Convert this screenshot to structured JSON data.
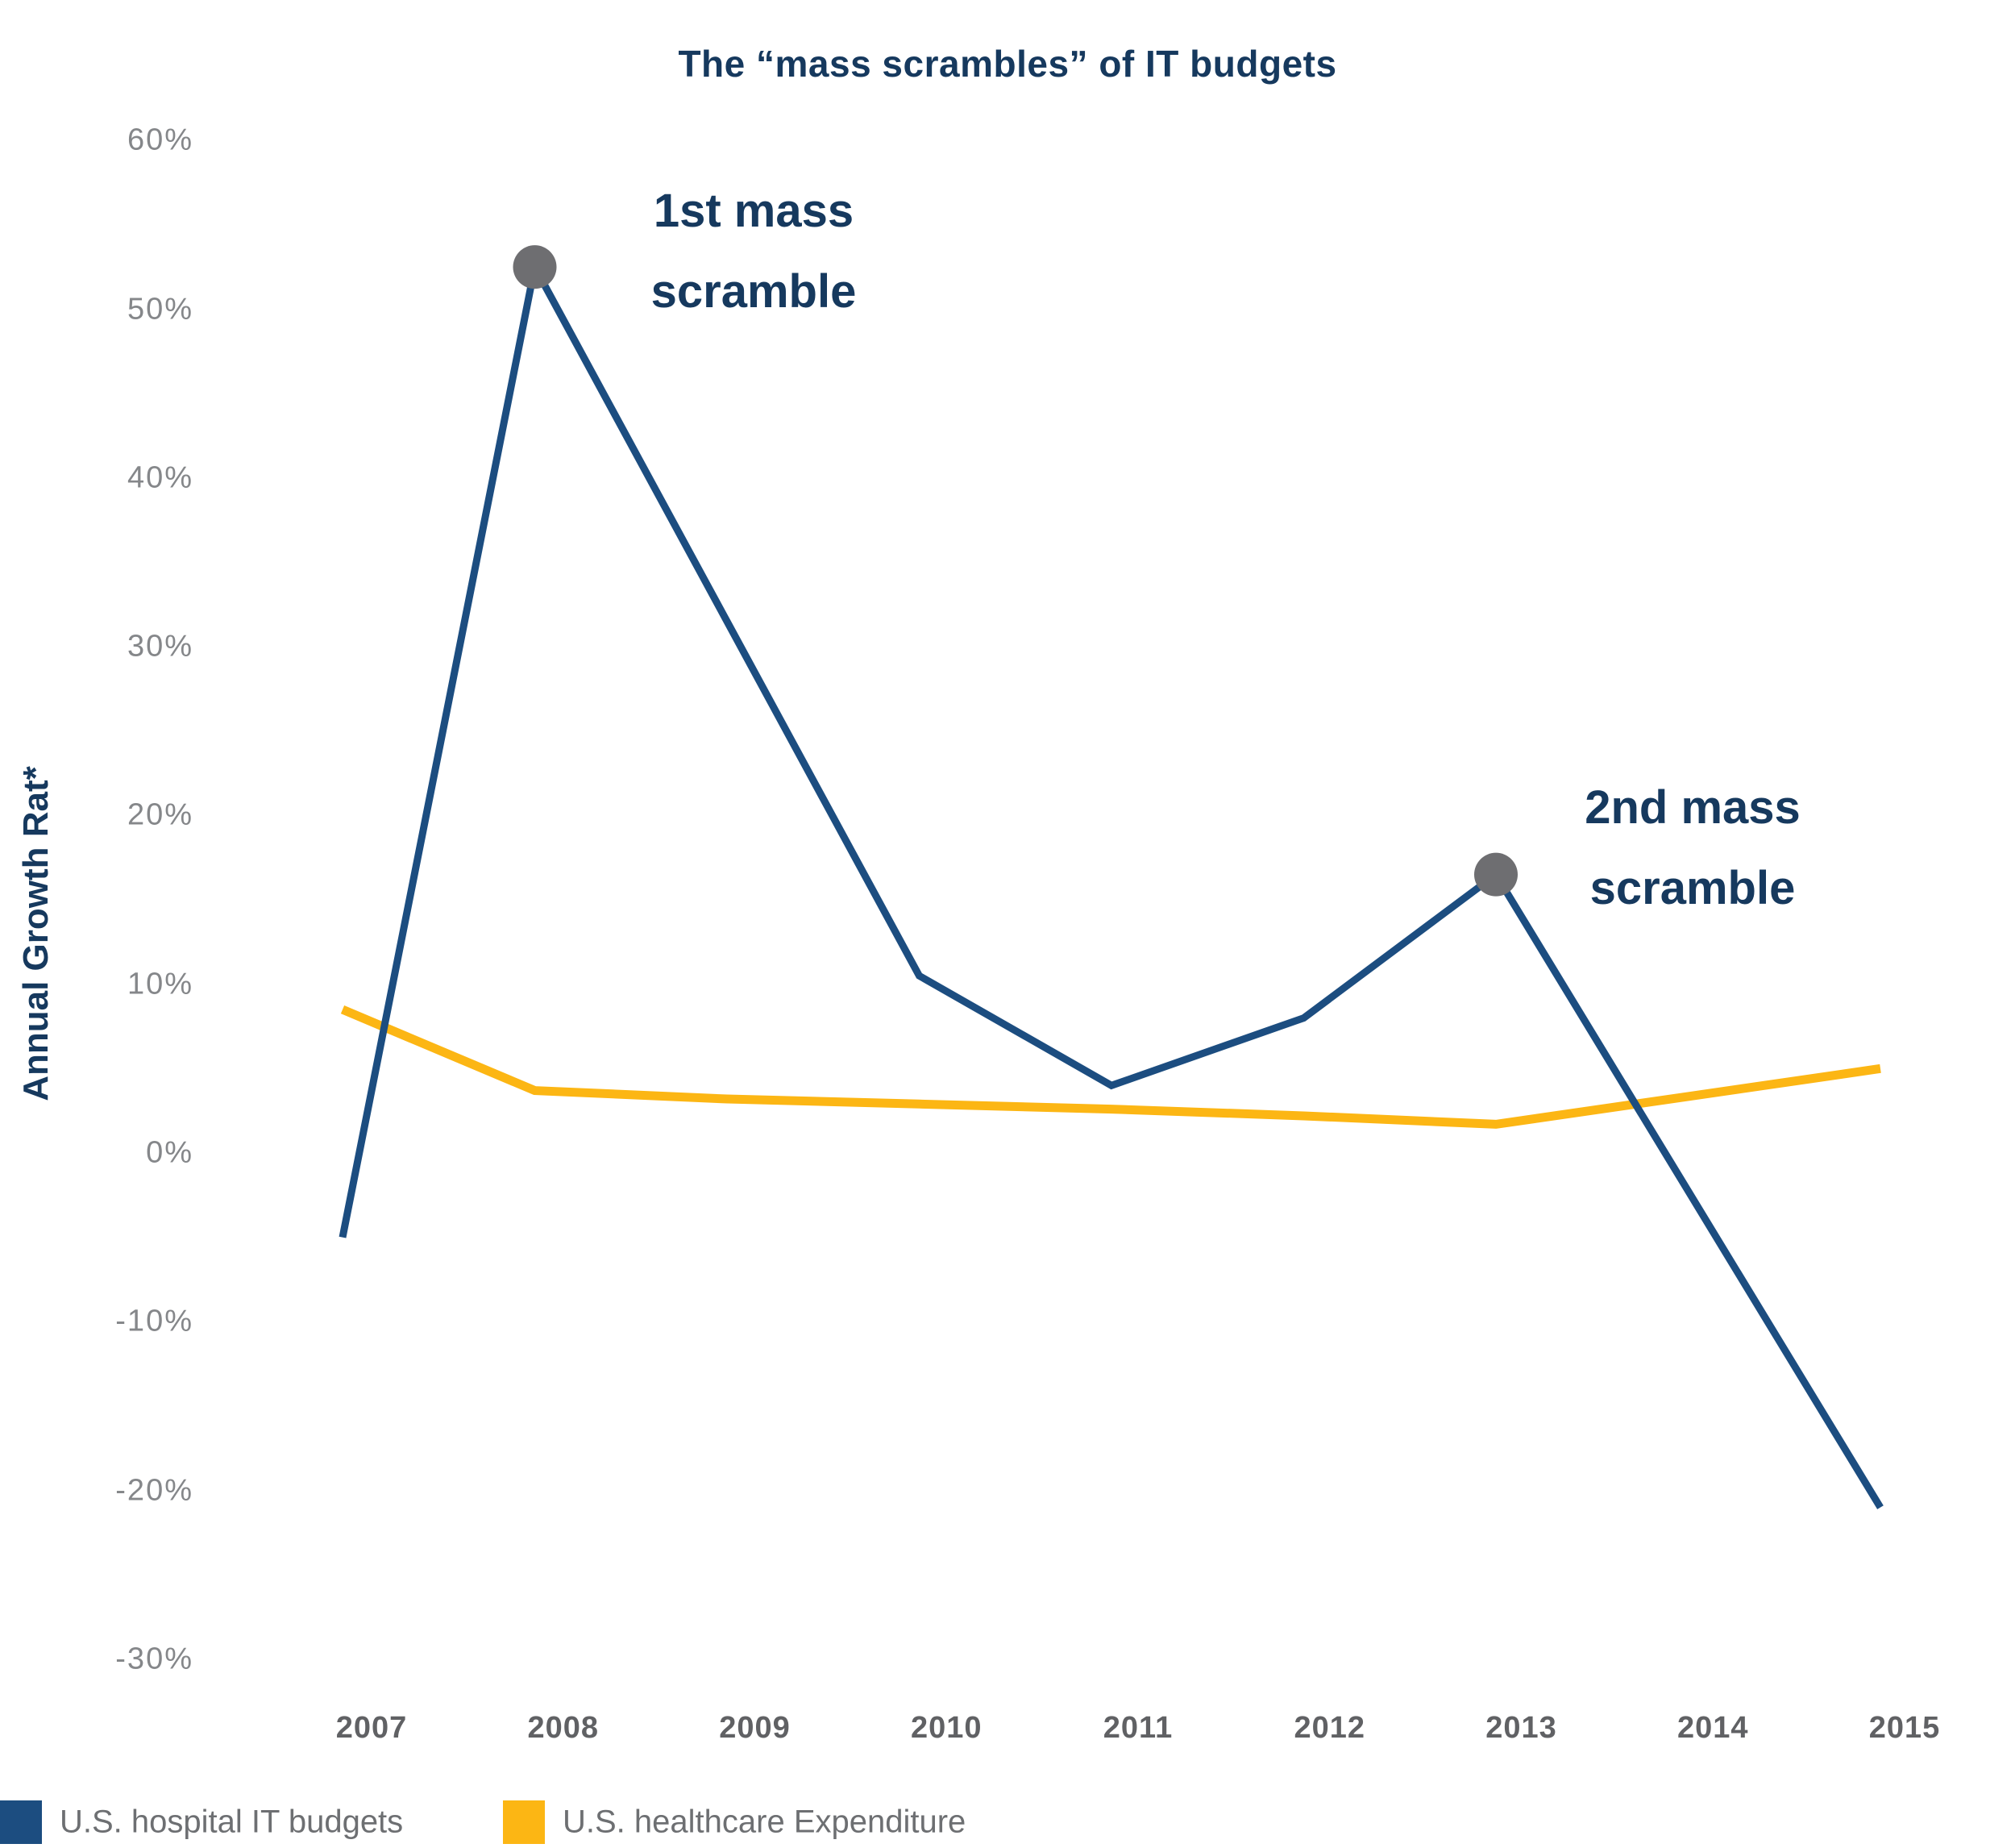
{
  "title": "The “mass scrambles” of IT budgets",
  "y_axis_title": "Annual Growth Rat*",
  "annotations": [
    {
      "lines": [
        "1st mass",
        "scramble"
      ]
    },
    {
      "lines": [
        "2nd mass",
        "scramble"
      ]
    }
  ],
  "legend": [
    {
      "label": "U.S. hospital IT budgets",
      "color": "#1c4d80"
    },
    {
      "label": "U.S. healthcare Expenditure",
      "color": "#fcb614"
    }
  ],
  "colors": {
    "navy_text": "#16395e",
    "blue_line": "#1c4d80",
    "yellow_line": "#fcb614",
    "marker_dot": "#6e6e71",
    "ytick_gray": "#85878a",
    "xtick_gray": "#606164",
    "legend_text": "#6d6f72"
  },
  "chart_data": {
    "type": "line",
    "title": "The “mass scrambles” of IT budgets",
    "xlabel": "",
    "ylabel": "Annual Growth Rat*",
    "x": [
      2007,
      2008,
      2009,
      2010,
      2011,
      2012,
      2013,
      2014,
      2015
    ],
    "x_labels": [
      "2007",
      "2008",
      "2009",
      "2010",
      "2011",
      "2012",
      "2013",
      "2014",
      "2015"
    ],
    "series": [
      {
        "name": "U.S. hospital IT budgets",
        "color": "#1c4d80",
        "values": [
          -5,
          52.5,
          31.5,
          10.5,
          4,
          8,
          16.5,
          -2.25,
          -21
        ]
      },
      {
        "name": "U.S. healthcare Expenditure",
        "color": "#fcb614",
        "values": [
          8.5,
          3.7,
          3.2,
          2.9,
          2.6,
          2.2,
          1.7,
          3.35,
          5
        ]
      }
    ],
    "markers": [
      {
        "series": 0,
        "year": 2008,
        "label": "1st mass scramble"
      },
      {
        "series": 0,
        "year": 2013,
        "label": "2nd mass scramble"
      }
    ],
    "ylim": [
      -30,
      60
    ],
    "ytick_values": [
      60,
      50,
      40,
      30,
      20,
      10,
      0,
      -10,
      -20,
      -30
    ],
    "ytick_labels": [
      "60%",
      "50%",
      "40%",
      "30%",
      "20%",
      "10%",
      "0%",
      "-10%",
      "-20%",
      "-30%"
    ],
    "grid": false,
    "legend_position": "bottom-left"
  }
}
